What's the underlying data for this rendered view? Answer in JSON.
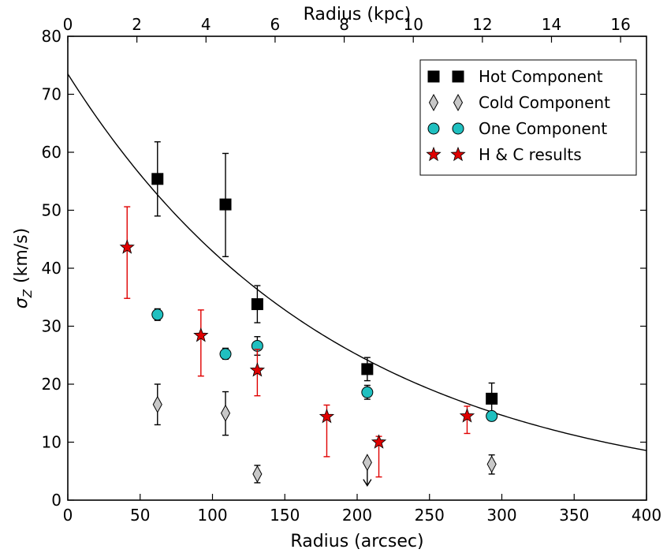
{
  "chart_data": {
    "type": "scatter",
    "xlabel": "Radius (arcsec)",
    "x2label": "Radius (kpc)",
    "ylabel_main": "σ",
    "ylabel_sub": "Z",
    "ylabel_unit": "(km/s)",
    "xlim": [
      0,
      400
    ],
    "ylim": [
      0,
      80
    ],
    "x2lim": [
      0,
      16.75
    ],
    "x_ticks": [
      0,
      50,
      100,
      150,
      200,
      250,
      300,
      350,
      400
    ],
    "x_tick_labels": [
      "0",
      "50",
      "100",
      "150",
      "200",
      "250",
      "300",
      "350",
      "400"
    ],
    "y_ticks": [
      0,
      10,
      20,
      30,
      40,
      50,
      60,
      70,
      80
    ],
    "y_tick_labels": [
      "0",
      "10",
      "20",
      "30",
      "40",
      "50",
      "60",
      "70",
      "80"
    ],
    "x2_ticks": [
      0,
      2,
      4,
      6,
      8,
      10,
      12,
      14,
      16
    ],
    "x2_tick_labels": [
      "0",
      "2",
      "4",
      "6",
      "8",
      "10",
      "12",
      "14",
      "16"
    ],
    "grid": false,
    "legend_position": "top-right",
    "series": [
      {
        "name": "Hot Component",
        "marker": "square",
        "color": "#000000",
        "error_color": "#000000",
        "points": [
          {
            "x": 62,
            "y": 55.4,
            "lo": 49.0,
            "hi": 61.8
          },
          {
            "x": 109,
            "y": 51.0,
            "lo": 42.0,
            "hi": 59.8
          },
          {
            "x": 131,
            "y": 33.8,
            "lo": 30.6,
            "hi": 37.0
          },
          {
            "x": 207,
            "y": 22.6,
            "lo": 20.6,
            "hi": 24.6
          },
          {
            "x": 293,
            "y": 17.5,
            "lo": 14.8,
            "hi": 20.2
          }
        ]
      },
      {
        "name": "Cold Component",
        "marker": "diamond",
        "color": "#c8c8c8",
        "error_color": "#000000",
        "points": [
          {
            "x": 62,
            "y": 16.5,
            "lo": 13.0,
            "hi": 20.0
          },
          {
            "x": 109,
            "y": 15.0,
            "lo": 11.2,
            "hi": 18.7
          },
          {
            "x": 131,
            "y": 4.5,
            "lo": 3.0,
            "hi": 6.0
          },
          {
            "x": 207,
            "y": 6.5,
            "lo": 2.5,
            "hi": 6.5,
            "upper_limit": true
          },
          {
            "x": 293,
            "y": 6.2,
            "lo": 4.5,
            "hi": 7.8
          }
        ]
      },
      {
        "name": "One Component",
        "marker": "circle",
        "color": "#20c0c0",
        "error_color": "#000000",
        "points": [
          {
            "x": 62,
            "y": 32.0,
            "lo": 31.0,
            "hi": 33.0
          },
          {
            "x": 109,
            "y": 25.2,
            "lo": 24.3,
            "hi": 26.2
          },
          {
            "x": 131,
            "y": 26.6,
            "lo": 25.0,
            "hi": 28.2
          },
          {
            "x": 207,
            "y": 18.6,
            "lo": 17.4,
            "hi": 19.8
          },
          {
            "x": 293,
            "y": 14.5,
            "lo": 13.8,
            "hi": 15.2
          }
        ]
      },
      {
        "name": "H & C results",
        "marker": "star",
        "color": "#e00000",
        "error_color": "#e00000",
        "points": [
          {
            "x": 41,
            "y": 43.6,
            "lo": 34.8,
            "hi": 50.6
          },
          {
            "x": 92,
            "y": 28.4,
            "lo": 21.4,
            "hi": 32.8
          },
          {
            "x": 131,
            "y": 22.4,
            "lo": 18.0,
            "hi": 26.0
          },
          {
            "x": 179,
            "y": 14.4,
            "lo": 7.5,
            "hi": 16.4
          },
          {
            "x": 215,
            "y": 10.0,
            "lo": 4.0,
            "hi": 11.0
          },
          {
            "x": 276,
            "y": 14.5,
            "lo": 11.5,
            "hi": 16.2
          }
        ]
      }
    ],
    "fit_curve": {
      "type": "exponential",
      "y0": 73.5,
      "scale_length": 186,
      "color": "#000000"
    }
  }
}
